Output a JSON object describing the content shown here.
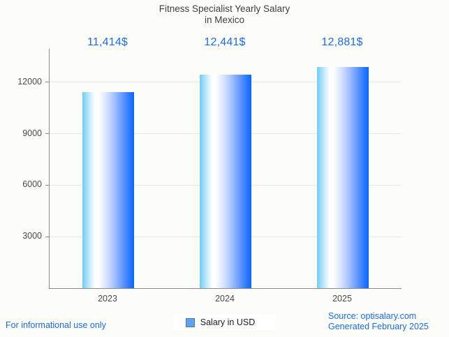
{
  "chart_data": {
    "type": "bar",
    "title": "Fitness Specialist Yearly Salary in Mexico",
    "title_lines": [
      "Fitness Specialist Yearly Salary",
      "in Mexico"
    ],
    "categories": [
      "2023",
      "2024",
      "2025"
    ],
    "series": [
      {
        "name": "Salary in USD",
        "values": [
          11414,
          12441,
          12881
        ]
      }
    ],
    "value_labels": [
      "11,414$",
      "12,441$",
      "12,881$"
    ],
    "xlabel": "",
    "ylabel": "",
    "y_ticks": [
      3000,
      6000,
      9000,
      12000
    ],
    "ylim": [
      0,
      13950
    ],
    "grid": true,
    "legend_position": "bottom",
    "colors": {
      "annotation_text": "#1a6ce8",
      "bar_gradient_left": "#6fcdf5",
      "bar_gradient_mid": "#ffffff",
      "bar_gradient_right": "#0b66ff",
      "axis": "#8b8b8b",
      "gridline": "#e6e6e4",
      "title_text": "#3f3f3f",
      "tick_text": "#4a4a4a",
      "background": "#fcfcf9"
    }
  },
  "legend": {
    "label": "Salary in USD",
    "swatch_fill": "#63a1e8",
    "swatch_border": "#3d7cc9"
  },
  "footer": {
    "disclaimer": "For informational use only",
    "source": "Source: optisalary.com",
    "generated": "Generated February 2025",
    "text_color": "#1a6ce8"
  }
}
